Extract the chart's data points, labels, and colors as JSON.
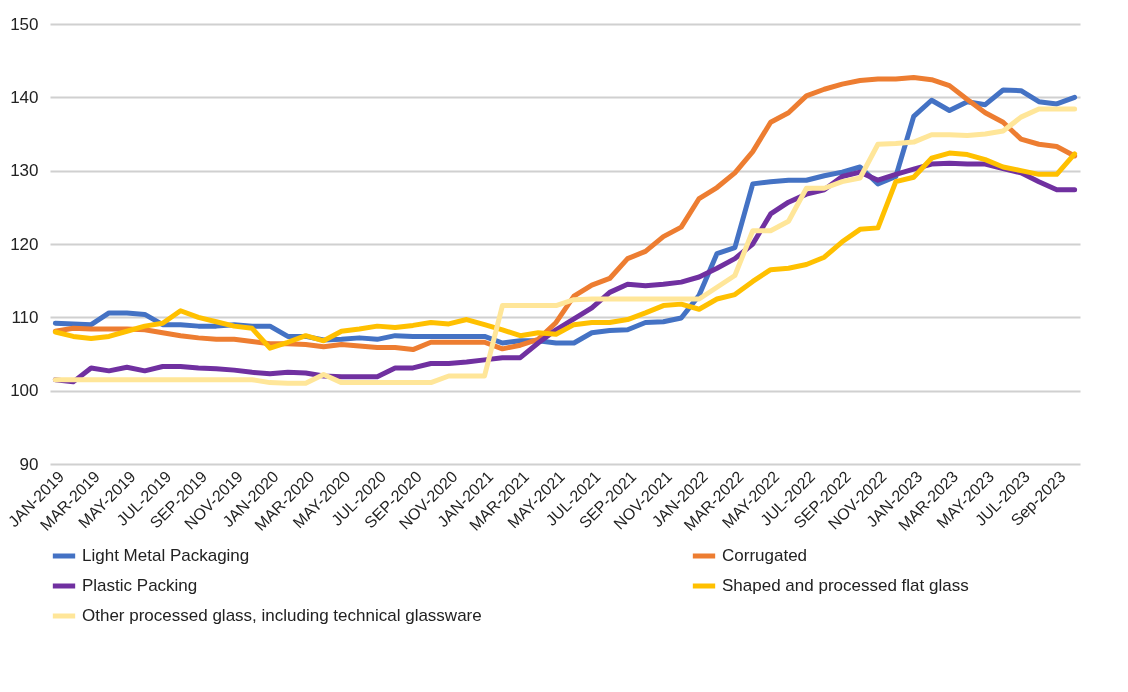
{
  "chart_data": {
    "type": "line",
    "categories": [
      "JAN-2019",
      null,
      "MAR-2019",
      null,
      "MAY-2019",
      null,
      "JUL-2019",
      null,
      "SEP-2019",
      null,
      "NOV-2019",
      null,
      "JAN-2020",
      null,
      "MAR-2020",
      null,
      "MAY-2020",
      null,
      "JUL-2020",
      null,
      "SEP-2020",
      null,
      "NOV-2020",
      null,
      "JAN-2021",
      null,
      "MAR-2021",
      null,
      "MAY-2021",
      null,
      "JUL-2021",
      null,
      "SEP-2021",
      null,
      "NOV-2021",
      null,
      "JAN-2022",
      null,
      "MAR-2022",
      null,
      "MAY-2022",
      null,
      "JUL-2022",
      null,
      "SEP-2022",
      null,
      "NOV-2022",
      null,
      "JAN-2023",
      null,
      "MAR-2023",
      null,
      "MAY-2023",
      null,
      "JUL-2023",
      null,
      "Sep-2023",
      null
    ],
    "series": [
      {
        "name": "Light Metal Packaging",
        "color": "#4472c4",
        "values": [
          109.2,
          109.1,
          109.0,
          110.6,
          110.6,
          110.4,
          109.0,
          109.0,
          108.8,
          108.8,
          109.0,
          108.8,
          108.8,
          107.4,
          107.4,
          106.9,
          107.0,
          107.2,
          107.0,
          107.5,
          107.4,
          107.4,
          107.4,
          107.4,
          107.4,
          106.5,
          106.8,
          106.8,
          106.5,
          106.5,
          107.9,
          108.2,
          108.3,
          109.3,
          109.4,
          109.9,
          113.0,
          118.7,
          119.5,
          128.2,
          128.5,
          128.7,
          128.7,
          129.3,
          129.8,
          130.5,
          128.2,
          129.2,
          137.4,
          139.6,
          138.2,
          139.4,
          139.0,
          141.0,
          140.9,
          139.4,
          139.1,
          140.0
        ]
      },
      {
        "name": "Corrugated",
        "color": "#ed7d31",
        "values": [
          108.1,
          108.5,
          108.4,
          108.4,
          108.4,
          108.3,
          107.9,
          107.5,
          107.2,
          107.0,
          107.0,
          106.7,
          106.4,
          106.4,
          106.3,
          106.0,
          106.3,
          106.1,
          105.9,
          105.9,
          105.6,
          106.6,
          106.6,
          106.6,
          106.6,
          105.7,
          106.2,
          107.0,
          109.3,
          112.9,
          114.4,
          115.3,
          118.0,
          119.0,
          121.0,
          122.3,
          126.2,
          127.7,
          129.7,
          132.6,
          136.6,
          137.9,
          140.2,
          141.1,
          141.8,
          142.3,
          142.5,
          142.5,
          142.7,
          142.4,
          141.6,
          139.7,
          137.9,
          136.6,
          134.3,
          133.6,
          133.3,
          132.0
        ]
      },
      {
        "name": "Plastic Packing",
        "color": "#7030a0",
        "values": [
          101.5,
          101.2,
          103.1,
          102.7,
          103.2,
          102.7,
          103.3,
          103.3,
          103.1,
          103.0,
          102.8,
          102.5,
          102.3,
          102.5,
          102.4,
          102.0,
          101.9,
          101.9,
          101.9,
          103.1,
          103.1,
          103.7,
          103.7,
          103.9,
          104.2,
          104.5,
          104.5,
          106.5,
          108.3,
          109.8,
          111.3,
          113.4,
          114.5,
          114.3,
          114.5,
          114.8,
          115.5,
          116.7,
          118.0,
          120.0,
          124.1,
          125.7,
          126.8,
          127.4,
          129.2,
          129.8,
          128.7,
          129.5,
          130.2,
          130.9,
          131.0,
          130.9,
          130.9,
          130.3,
          129.7,
          128.5,
          127.4,
          127.4
        ]
      },
      {
        "name": "Shaped and processed flat glass",
        "color": "#ffc000",
        "values": [
          108.0,
          107.4,
          107.1,
          107.4,
          108.1,
          108.8,
          109.2,
          110.9,
          110.0,
          109.4,
          108.8,
          108.5,
          105.8,
          106.6,
          107.5,
          106.8,
          108.1,
          108.4,
          108.8,
          108.6,
          108.9,
          109.3,
          109.1,
          109.7,
          109.0,
          108.3,
          107.5,
          107.9,
          107.7,
          109.0,
          109.3,
          109.3,
          109.7,
          110.6,
          111.6,
          111.8,
          111.1,
          112.5,
          113.1,
          114.9,
          116.5,
          116.7,
          117.2,
          118.2,
          120.3,
          122.0,
          122.2,
          128.5,
          129.1,
          131.7,
          132.4,
          132.2,
          131.5,
          130.5,
          130.0,
          129.5,
          129.5,
          132.3
        ]
      },
      {
        "name": "Other processed glass, including technical glassware",
        "color": "#ffe699",
        "values": [
          101.5,
          101.5,
          101.5,
          101.5,
          101.5,
          101.5,
          101.5,
          101.5,
          101.5,
          101.5,
          101.5,
          101.5,
          101.1,
          101.0,
          101.0,
          102.2,
          101.1,
          101.1,
          101.1,
          101.1,
          101.1,
          101.1,
          102.0,
          102.0,
          102.0,
          111.6,
          111.6,
          111.6,
          111.6,
          112.4,
          112.5,
          112.5,
          112.5,
          112.5,
          112.5,
          112.5,
          112.5,
          114.1,
          115.7,
          121.8,
          121.8,
          123.1,
          127.6,
          127.6,
          128.5,
          129.0,
          133.6,
          133.7,
          133.9,
          134.9,
          134.9,
          134.8,
          135.0,
          135.4,
          137.3,
          138.4,
          138.4,
          138.4
        ]
      }
    ],
    "ylim": [
      90,
      150
    ],
    "yticks": [
      90,
      100,
      110,
      120,
      130,
      140,
      150
    ],
    "grid": "y",
    "legend": "bottom",
    "line_style": "solid",
    "marker": "none"
  }
}
